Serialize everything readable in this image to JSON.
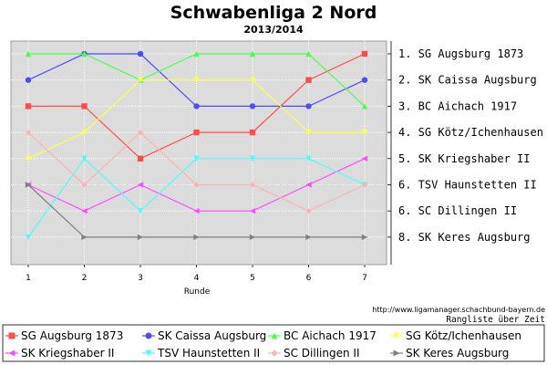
{
  "chart_data": {
    "type": "line",
    "title": "Schwabenliga 2 Nord",
    "subtitle": "2013/2014",
    "xlabel": "Runde",
    "ylabel": "",
    "x": [
      1,
      2,
      3,
      4,
      5,
      6,
      7
    ],
    "ylim": [
      1,
      8
    ],
    "y_inverted": true,
    "grid": true,
    "legend_position": "bottom",
    "final_ranking": [
      "1. SG Augsburg 1873",
      "2. SK Caissa Augsburg",
      "3. BC Aichach 1917",
      "4. SG Kötz/Ichenhausen",
      "5. SK Kriegshaber II",
      "6. TSV Haunstetten II",
      "6. SC Dillingen II",
      "8. SK Keres Augsburg"
    ],
    "series": [
      {
        "name": "SG Augsburg 1873",
        "color": "#ff4d4d",
        "marker": "square",
        "x": [
          1,
          2,
          3,
          4,
          5,
          6,
          7
        ],
        "values": [
          3,
          3,
          5,
          4,
          4,
          2,
          1
        ]
      },
      {
        "name": "SK Caissa Augsburg",
        "color": "#4d4dff",
        "marker": "circle",
        "x": [
          1,
          2,
          3,
          4,
          5,
          6,
          7
        ],
        "values": [
          2,
          1,
          1,
          3,
          3,
          3,
          2
        ]
      },
      {
        "name": "BC Aichach 1917",
        "color": "#4dff4d",
        "marker": "triangle-up",
        "x": [
          1,
          2,
          3,
          4,
          5,
          6,
          7
        ],
        "values": [
          1,
          1,
          2,
          1,
          1,
          1,
          3
        ]
      },
      {
        "name": "SG Kötz/Ichenhausen",
        "color": "#ffff4d",
        "marker": "triangle-down",
        "x": [
          1,
          2,
          3,
          4,
          5,
          6,
          7
        ],
        "values": [
          5,
          4,
          2,
          2,
          2,
          4,
          4
        ]
      },
      {
        "name": "SK Kriegshaber II",
        "color": "#ff4dff",
        "marker": "triangle-left",
        "x": [
          1,
          2,
          3,
          4,
          5,
          6,
          7
        ],
        "values": [
          6,
          7,
          6,
          7,
          7,
          6,
          5
        ]
      },
      {
        "name": "TSV Haunstetten II",
        "color": "#4dffff",
        "marker": "triangle-down",
        "x": [
          1,
          2,
          3,
          4,
          5,
          6,
          7
        ],
        "values": [
          8,
          5,
          7,
          5,
          5,
          5,
          6
        ]
      },
      {
        "name": "SC Dillingen II",
        "color": "#ffb3b3",
        "marker": "diamond",
        "x": [
          1,
          2,
          3,
          4,
          5,
          6,
          7
        ],
        "values": [
          4,
          6,
          4,
          6,
          6,
          7,
          6
        ]
      },
      {
        "name": "SK Keres Augsburg",
        "color": "#808080",
        "marker": "triangle-right",
        "x": [
          1,
          2,
          3,
          4,
          5,
          6,
          7
        ],
        "values": [
          6,
          8,
          8,
          8,
          8,
          8,
          8
        ]
      }
    ]
  },
  "footer": {
    "url": "http://www.ligamanager.schachbund-bayern.de",
    "caption": "Rangliste über Zeit"
  }
}
